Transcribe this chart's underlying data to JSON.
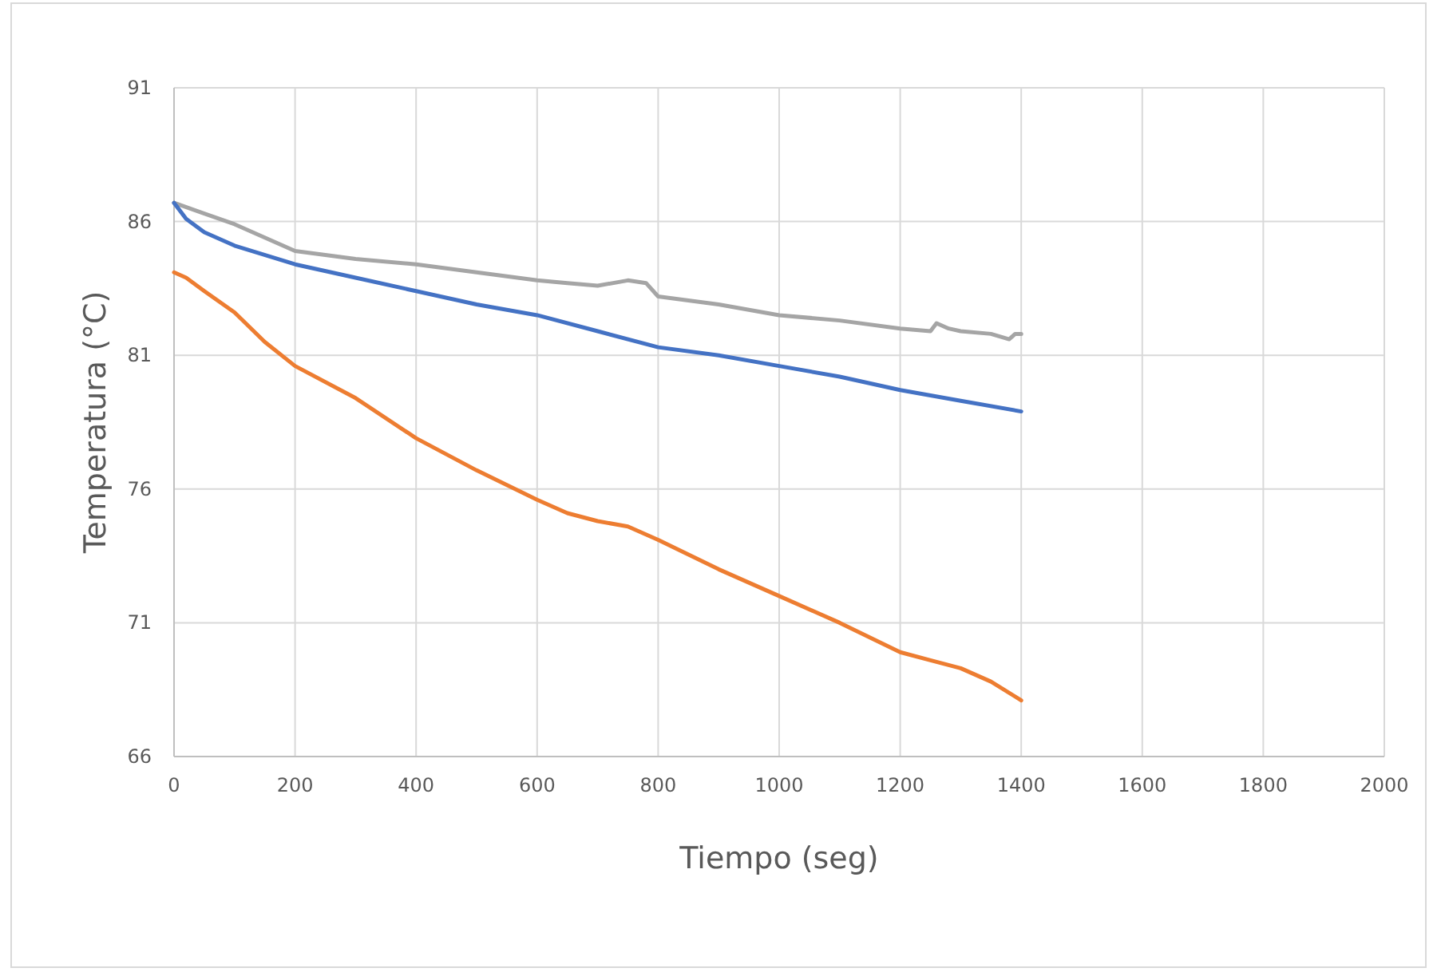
{
  "chart_data": {
    "type": "line",
    "xlabel": "Tiempo (seg)",
    "ylabel": "Temperatura (°C)",
    "xlim": [
      0,
      2000
    ],
    "ylim": [
      66,
      91
    ],
    "xticks": [
      0,
      200,
      400,
      600,
      800,
      1000,
      1200,
      1400,
      1600,
      1800,
      2000
    ],
    "yticks": [
      66,
      71,
      76,
      81,
      86,
      91
    ],
    "grid": true,
    "line_style": "solid",
    "marker": "none",
    "series": [
      {
        "color": "#a5a5a5",
        "x": [
          0,
          50,
          100,
          200,
          300,
          400,
          500,
          600,
          650,
          700,
          750,
          780,
          800,
          900,
          1000,
          1100,
          1200,
          1250,
          1260,
          1280,
          1300,
          1350,
          1380,
          1390,
          1400
        ],
        "values": [
          86.7,
          86.3,
          85.9,
          84.9,
          84.6,
          84.4,
          84.1,
          83.8,
          83.7,
          83.6,
          83.8,
          83.7,
          83.2,
          82.9,
          82.5,
          82.3,
          82.0,
          81.9,
          82.2,
          82.0,
          81.9,
          81.8,
          81.6,
          81.8,
          81.8
        ]
      },
      {
        "color": "#4472c4",
        "x": [
          0,
          20,
          50,
          100,
          200,
          300,
          400,
          500,
          600,
          700,
          800,
          900,
          1000,
          1100,
          1200,
          1300,
          1400
        ],
        "values": [
          86.7,
          86.1,
          85.6,
          85.1,
          84.4,
          83.9,
          83.4,
          82.9,
          82.5,
          81.9,
          81.3,
          81.0,
          80.6,
          80.2,
          79.7,
          79.3,
          78.9
        ]
      },
      {
        "color": "#ed7d31",
        "x": [
          0,
          20,
          50,
          100,
          150,
          200,
          300,
          400,
          500,
          600,
          650,
          700,
          750,
          800,
          900,
          1000,
          1100,
          1200,
          1250,
          1300,
          1350,
          1400
        ],
        "values": [
          84.1,
          83.9,
          83.4,
          82.6,
          81.5,
          80.6,
          79.4,
          77.9,
          76.7,
          75.6,
          75.1,
          74.8,
          74.6,
          74.1,
          73.0,
          72.0,
          71.0,
          69.9,
          69.6,
          69.3,
          68.8,
          68.1
        ]
      }
    ]
  }
}
